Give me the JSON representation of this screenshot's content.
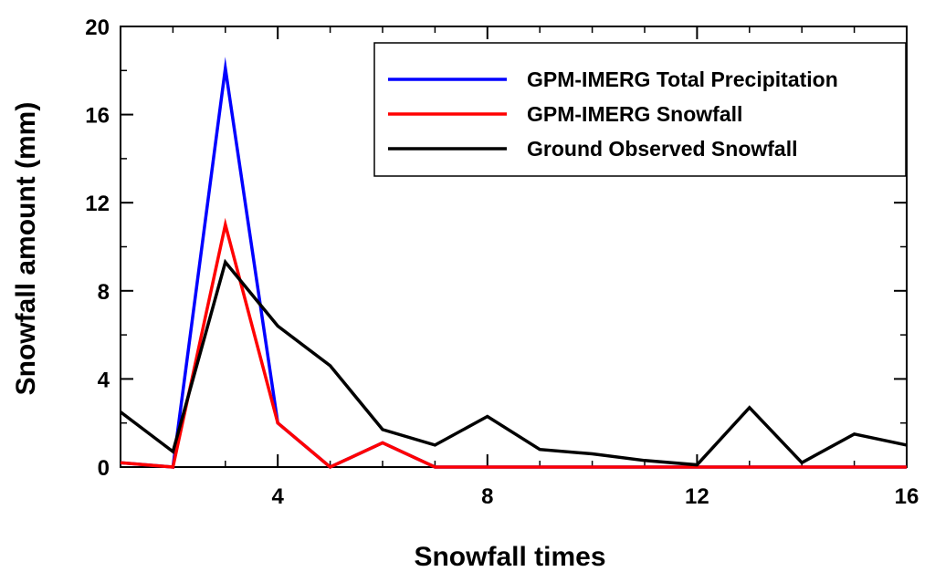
{
  "chart_data": {
    "type": "line",
    "xlabel": "Snowfall times",
    "ylabel": "Snowfall amount (mm)",
    "xlim": [
      1,
      16
    ],
    "ylim": [
      0,
      20
    ],
    "xticks": [
      4,
      8,
      12,
      16
    ],
    "yticks": [
      0,
      4,
      8,
      12,
      16,
      20
    ],
    "grid": false,
    "legend_position": "top-right",
    "series": [
      {
        "name": "GPM-IMERG Total Precipitation",
        "color": "#0000ff",
        "x": [
          1,
          2,
          3,
          4,
          5,
          6,
          7,
          8,
          9,
          10,
          11,
          12,
          13,
          14,
          15,
          16
        ],
        "values": [
          0.2,
          0.0,
          18.1,
          2.0,
          0.0,
          1.1,
          0.0,
          0.0,
          0.0,
          0.0,
          0.0,
          0.0,
          0.0,
          0.0,
          0.0,
          0.0
        ]
      },
      {
        "name": "GPM-IMERG Snowfall",
        "color": "#ff0000",
        "x": [
          1,
          2,
          3,
          4,
          5,
          6,
          7,
          8,
          9,
          10,
          11,
          12,
          13,
          14,
          15,
          16
        ],
        "values": [
          0.2,
          0.0,
          11.0,
          2.0,
          0.0,
          1.1,
          0.0,
          0.0,
          0.0,
          0.0,
          0.0,
          0.0,
          0.0,
          0.0,
          0.0,
          0.0
        ]
      },
      {
        "name": "Ground Observed Snowfall",
        "color": "#000000",
        "x": [
          1,
          2,
          3,
          4,
          5,
          6,
          7,
          8,
          9,
          10,
          11,
          12,
          13,
          14,
          15,
          16
        ],
        "values": [
          2.5,
          0.7,
          9.3,
          6.4,
          4.6,
          1.7,
          1.0,
          2.3,
          0.8,
          0.6,
          0.3,
          0.1,
          2.7,
          0.2,
          1.5,
          1.0
        ]
      }
    ]
  }
}
